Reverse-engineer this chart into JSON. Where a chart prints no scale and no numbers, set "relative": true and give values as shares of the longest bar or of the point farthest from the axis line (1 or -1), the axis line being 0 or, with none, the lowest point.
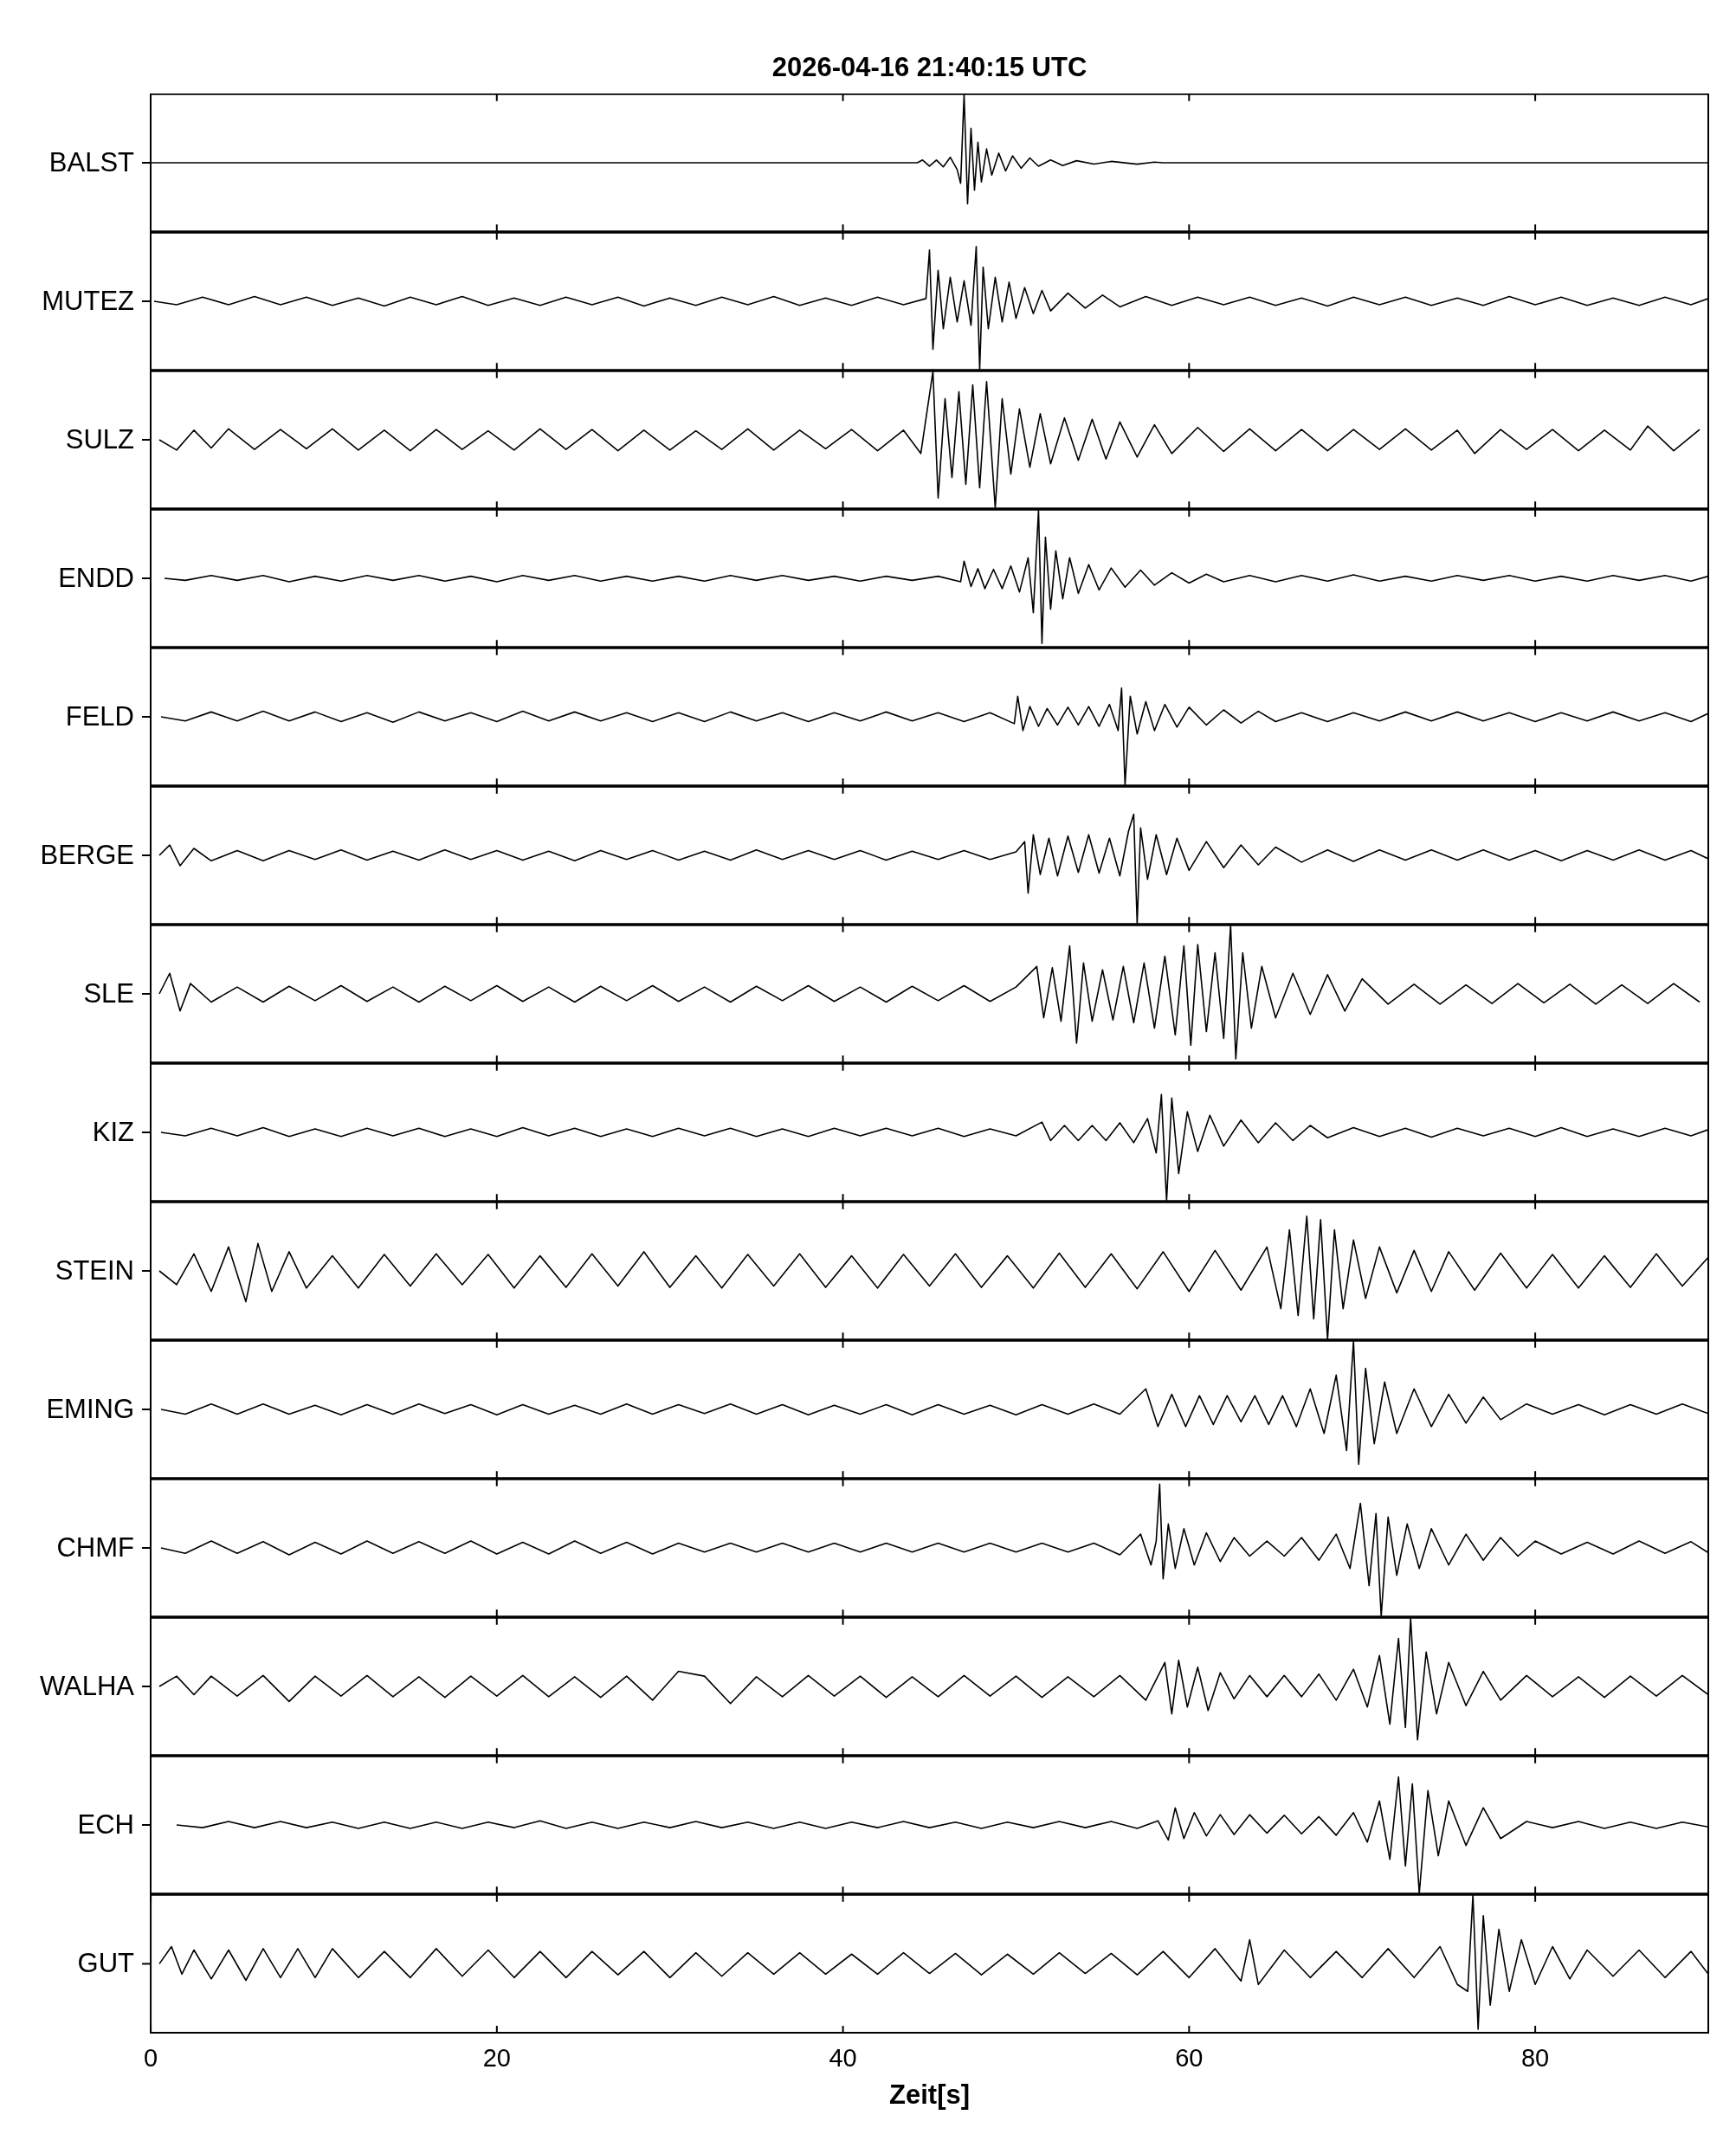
{
  "chart_data": [
    {
      "type": "line",
      "title": "2026-04-16  21:40:15 UTC",
      "ylabel": "BALST",
      "relative": true,
      "xlim": [
        0,
        90
      ],
      "xticks": [
        0,
        20,
        40,
        60,
        80
      ],
      "tick_labels": false,
      "color": "#000000",
      "x": [
        0,
        44.3,
        44.6,
        45,
        45.4,
        45.8,
        46.2,
        46.6,
        46.8,
        47,
        47.2,
        47.4,
        47.6,
        47.8,
        48,
        48.3,
        48.6,
        49,
        49.4,
        49.8,
        50.3,
        50.8,
        51.3,
        52,
        52.7,
        53.5,
        54.5,
        55.5,
        57,
        58,
        58.5,
        90
      ],
      "values": [
        0.5,
        0.5,
        0.52,
        0.475,
        0.52,
        0.47,
        0.54,
        0.45,
        0.35,
        1,
        0.2,
        0.75,
        0.3,
        0.65,
        0.36,
        0.6,
        0.41,
        0.57,
        0.44,
        0.55,
        0.46,
        0.535,
        0.475,
        0.52,
        0.48,
        0.515,
        0.49,
        0.51,
        0.49,
        0.505,
        0.5,
        0.5
      ]
    },
    {
      "type": "line",
      "ylabel": "MUTEZ",
      "relative": true,
      "xlim": [
        0,
        90
      ],
      "xticks": [
        0,
        20,
        40,
        60,
        80
      ],
      "tick_labels": false,
      "color": "#000000",
      "x": [
        0.2,
        1.5,
        3,
        4.5,
        6,
        7.5,
        9,
        10.5,
        12,
        13.5,
        15,
        16.5,
        18,
        19.5,
        21,
        22.5,
        24,
        25.5,
        27,
        28.5,
        30,
        31.5,
        33,
        34.5,
        36,
        37.5,
        39,
        40.5,
        42,
        43.5,
        44.8,
        45,
        45.2,
        45.5,
        45.8,
        46.2,
        46.6,
        47,
        47.4,
        47.7,
        47.9,
        48.1,
        48.4,
        48.8,
        49.2,
        49.6,
        50,
        50.5,
        51,
        51.5,
        52,
        53,
        54,
        55,
        56,
        57.5,
        59,
        60.5,
        62,
        63.5,
        65,
        66.5,
        68,
        69.5,
        71,
        72.5,
        74,
        75.5,
        77,
        78.5,
        80,
        81.5,
        83,
        84.5,
        86,
        87.5,
        89,
        90
      ],
      "values": [
        0.556,
        0.528,
        0.589,
        0.528,
        0.594,
        0.528,
        0.589,
        0.522,
        0.583,
        0.517,
        0.589,
        0.528,
        0.594,
        0.522,
        0.583,
        0.522,
        0.589,
        0.528,
        0.589,
        0.517,
        0.583,
        0.522,
        0.589,
        0.528,
        0.594,
        0.522,
        0.583,
        0.522,
        0.589,
        0.528,
        0.578,
        0.972,
        0.167,
        0.806,
        0.333,
        0.75,
        0.389,
        0.722,
        0.361,
        1,
        0,
        0.833,
        0.333,
        0.75,
        0.389,
        0.711,
        0.417,
        0.667,
        0.456,
        0.644,
        0.478,
        0.622,
        0.5,
        0.606,
        0.511,
        0.594,
        0.522,
        0.589,
        0.528,
        0.589,
        0.522,
        0.583,
        0.517,
        0.589,
        0.528,
        0.589,
        0.522,
        0.583,
        0.522,
        0.594,
        0.528,
        0.589,
        0.522,
        0.583,
        0.522,
        0.589,
        0.528,
        0.578
      ]
    },
    {
      "type": "line",
      "ylabel": "SULZ",
      "relative": true,
      "xlim": [
        0,
        90
      ],
      "xticks": [
        0,
        20,
        40,
        60,
        80
      ],
      "tick_labels": false,
      "color": "#000000",
      "x": [
        0.5,
        1.5,
        2.5,
        3.5,
        4.5,
        6,
        7.5,
        9,
        10.5,
        12,
        13.5,
        15,
        16.5,
        18,
        19.5,
        21,
        22.5,
        24,
        25.5,
        27,
        28.5,
        30,
        31.5,
        33,
        34.5,
        36,
        37.5,
        39,
        40.5,
        42,
        43.5,
        44.5,
        45.2,
        45.5,
        45.9,
        46.3,
        46.7,
        47.1,
        47.5,
        47.9,
        48.3,
        48.8,
        49.2,
        49.7,
        50.2,
        50.8,
        51.4,
        52,
        52.8,
        53.6,
        54.4,
        55.2,
        56,
        57,
        58,
        59,
        60.5,
        62,
        63.5,
        65,
        66.5,
        68,
        69.5,
        71,
        72.5,
        74,
        75.5,
        76.5,
        78,
        79.5,
        81,
        82.5,
        84,
        85.5,
        86.5,
        88,
        89.5
      ],
      "values": [
        0.5,
        0.425,
        0.57,
        0.44,
        0.58,
        0.43,
        0.575,
        0.435,
        0.58,
        0.425,
        0.57,
        0.42,
        0.575,
        0.43,
        0.565,
        0.425,
        0.58,
        0.43,
        0.575,
        0.42,
        0.57,
        0.425,
        0.565,
        0.43,
        0.58,
        0.425,
        0.57,
        0.435,
        0.575,
        0.42,
        0.57,
        0.4,
        1,
        0.075,
        0.8,
        0.225,
        0.85,
        0.175,
        0.9,
        0.15,
        0.925,
        0,
        0.8,
        0.25,
        0.725,
        0.3,
        0.69,
        0.325,
        0.66,
        0.35,
        0.65,
        0.36,
        0.63,
        0.375,
        0.61,
        0.4,
        0.59,
        0.415,
        0.58,
        0.42,
        0.575,
        0.42,
        0.575,
        0.43,
        0.58,
        0.425,
        0.57,
        0.4,
        0.575,
        0.43,
        0.575,
        0.42,
        0.57,
        0.425,
        0.6,
        0.42,
        0.575
      ]
    },
    {
      "type": "line",
      "ylabel": "ENDD",
      "relative": true,
      "xlim": [
        0,
        90
      ],
      "xticks": [
        0,
        20,
        40,
        60,
        80
      ],
      "tick_labels": false,
      "color": "#000000",
      "x": [
        0.8,
        2,
        3.5,
        5,
        6.5,
        8,
        9.5,
        11,
        12.5,
        14,
        15.5,
        17,
        18.5,
        20,
        21.5,
        23,
        24.5,
        26,
        27.5,
        29,
        30.5,
        32,
        33.5,
        35,
        36.5,
        38,
        39.5,
        41,
        42.5,
        44,
        45.5,
        46.8,
        47,
        47.4,
        47.8,
        48.2,
        48.7,
        49.2,
        49.7,
        50.2,
        50.7,
        51,
        51.3,
        51.5,
        51.7,
        52,
        52.3,
        52.7,
        53.1,
        53.6,
        54.2,
        54.8,
        55.5,
        56.3,
        57.2,
        58,
        59,
        60,
        61,
        62,
        63.5,
        65,
        66.5,
        68,
        69.5,
        71,
        72.5,
        74,
        75.5,
        77,
        78.5,
        80,
        81.5,
        83,
        84.5,
        86,
        87.5,
        89,
        90
      ],
      "values": [
        0.5,
        0.485,
        0.52,
        0.485,
        0.52,
        0.475,
        0.515,
        0.48,
        0.52,
        0.485,
        0.52,
        0.48,
        0.515,
        0.475,
        0.52,
        0.485,
        0.52,
        0.48,
        0.515,
        0.48,
        0.515,
        0.48,
        0.52,
        0.485,
        0.52,
        0.485,
        0.515,
        0.48,
        0.515,
        0.485,
        0.515,
        0.475,
        0.625,
        0.44,
        0.57,
        0.425,
        0.565,
        0.425,
        0.59,
        0.4,
        0.65,
        0.25,
        1,
        0.025,
        0.8,
        0.275,
        0.7,
        0.35,
        0.65,
        0.39,
        0.6,
        0.415,
        0.575,
        0.435,
        0.56,
        0.45,
        0.54,
        0.465,
        0.53,
        0.475,
        0.52,
        0.475,
        0.52,
        0.48,
        0.525,
        0.48,
        0.515,
        0.48,
        0.52,
        0.485,
        0.52,
        0.48,
        0.515,
        0.48,
        0.52,
        0.485,
        0.52,
        0.48,
        0.515
      ]
    },
    {
      "type": "line",
      "ylabel": "FELD",
      "relative": true,
      "xlim": [
        0,
        90
      ],
      "xticks": [
        0,
        20,
        40,
        60,
        80
      ],
      "tick_labels": false,
      "color": "#000000",
      "x": [
        0.6,
        2,
        3.5,
        5,
        6.5,
        8,
        9.5,
        11,
        12.5,
        14,
        15.5,
        17,
        18.5,
        20,
        21.5,
        23,
        24.5,
        26,
        27.5,
        29,
        30.5,
        32,
        33.5,
        35,
        36.5,
        38,
        39.5,
        41,
        42.5,
        44,
        45.5,
        47,
        48.5,
        49.9,
        50.1,
        50.4,
        50.8,
        51.3,
        51.8,
        52.4,
        53,
        53.6,
        54.2,
        54.8,
        55.4,
        55.9,
        56.1,
        56.3,
        56.6,
        57,
        57.5,
        58,
        58.6,
        59.3,
        60,
        61,
        62,
        63,
        64,
        65,
        66.5,
        68,
        69.5,
        71,
        72.5,
        74,
        75.5,
        77,
        78.5,
        80,
        81.5,
        83,
        84.5,
        86,
        87.5,
        89,
        90
      ],
      "values": [
        0.704,
        0.662,
        0.754,
        0.662,
        0.761,
        0.662,
        0.754,
        0.655,
        0.746,
        0.648,
        0.754,
        0.662,
        0.746,
        0.655,
        0.761,
        0.662,
        0.754,
        0.662,
        0.746,
        0.655,
        0.746,
        0.655,
        0.754,
        0.662,
        0.746,
        0.655,
        0.746,
        0.662,
        0.754,
        0.662,
        0.746,
        0.655,
        0.746,
        0.634,
        0.915,
        0.563,
        0.81,
        0.606,
        0.789,
        0.62,
        0.803,
        0.62,
        0.81,
        0.606,
        0.831,
        0.563,
        1,
        0,
        0.915,
        0.528,
        0.859,
        0.563,
        0.831,
        0.599,
        0.803,
        0.62,
        0.775,
        0.641,
        0.761,
        0.655,
        0.746,
        0.655,
        0.746,
        0.662,
        0.754,
        0.662,
        0.754,
        0.662,
        0.746,
        0.655,
        0.746,
        0.662,
        0.754,
        0.662,
        0.746,
        0.655,
        0.739
      ]
    },
    {
      "type": "line",
      "ylabel": "BERGE",
      "relative": true,
      "xlim": [
        0,
        90
      ],
      "xticks": [
        0,
        20,
        40,
        60,
        80
      ],
      "tick_labels": false,
      "color": "#000000",
      "x": [
        0.5,
        1.1,
        1.7,
        2.5,
        3.5,
        5,
        6.5,
        8,
        9.5,
        11,
        12.5,
        14,
        15.5,
        17,
        18.5,
        20,
        21.5,
        23,
        24.5,
        26,
        27.5,
        29,
        30.5,
        32,
        33.5,
        35,
        36.5,
        38,
        39.5,
        41,
        42.5,
        44,
        45.5,
        47,
        48.5,
        50,
        50.5,
        50.7,
        51,
        51.4,
        51.9,
        52.4,
        53,
        53.6,
        54.2,
        54.8,
        55.4,
        56,
        56.5,
        56.8,
        57,
        57.2,
        57.6,
        58.1,
        58.7,
        59.3,
        60,
        61,
        62,
        63,
        64,
        65,
        66.5,
        68,
        69.5,
        71,
        72.5,
        74,
        75.5,
        77,
        78.5,
        80,
        81.5,
        83,
        84.5,
        86,
        87.5,
        89,
        90
      ],
      "values": [
        0.625,
        0.719,
        0.531,
        0.688,
        0.575,
        0.669,
        0.575,
        0.669,
        0.588,
        0.675,
        0.581,
        0.663,
        0.581,
        0.675,
        0.588,
        0.669,
        0.581,
        0.663,
        0.575,
        0.669,
        0.588,
        0.669,
        0.581,
        0.663,
        0.581,
        0.675,
        0.588,
        0.669,
        0.588,
        0.669,
        0.581,
        0.663,
        0.588,
        0.669,
        0.588,
        0.656,
        0.75,
        0.281,
        0.813,
        0.45,
        0.781,
        0.438,
        0.8,
        0.469,
        0.813,
        0.463,
        0.781,
        0.438,
        0.844,
        1,
        0,
        0.875,
        0.406,
        0.813,
        0.45,
        0.781,
        0.488,
        0.75,
        0.513,
        0.719,
        0.538,
        0.7,
        0.563,
        0.675,
        0.569,
        0.675,
        0.581,
        0.675,
        0.581,
        0.675,
        0.581,
        0.669,
        0.575,
        0.669,
        0.581,
        0.675,
        0.581,
        0.669,
        0.594
      ]
    },
    {
      "type": "line",
      "ylabel": "SLE",
      "relative": true,
      "xlim": [
        0,
        90
      ],
      "xticks": [
        0,
        20,
        40,
        60,
        80
      ],
      "tick_labels": false,
      "color": "#000000",
      "x": [
        0.5,
        1.1,
        1.7,
        2.3,
        3.5,
        5,
        6.5,
        8,
        9.5,
        11,
        12.5,
        14,
        15.5,
        17,
        18.5,
        20,
        21.5,
        23,
        24.5,
        26,
        27.5,
        29,
        30.5,
        32,
        33.5,
        35,
        36.5,
        38,
        39.5,
        41,
        42.5,
        44,
        45.5,
        47,
        48.5,
        50,
        51.2,
        51.6,
        52.1,
        52.6,
        53.1,
        53.5,
        53.9,
        54.4,
        55,
        55.6,
        56.2,
        56.8,
        57.4,
        58,
        58.6,
        59.2,
        59.7,
        60.1,
        60.5,
        61,
        61.5,
        62,
        62.4,
        62.7,
        63.1,
        63.6,
        64.2,
        65,
        66,
        67,
        68,
        69,
        70,
        71.5,
        73,
        74.5,
        76,
        77.5,
        79,
        80.5,
        82,
        83.5,
        85,
        86.5,
        88,
        89.5
      ],
      "values": [
        0.5,
        0.65,
        0.375,
        0.575,
        0.44,
        0.55,
        0.44,
        0.555,
        0.45,
        0.56,
        0.445,
        0.55,
        0.44,
        0.555,
        0.45,
        0.56,
        0.445,
        0.55,
        0.44,
        0.555,
        0.45,
        0.56,
        0.445,
        0.55,
        0.44,
        0.555,
        0.45,
        0.56,
        0.445,
        0.55,
        0.44,
        0.555,
        0.45,
        0.56,
        0.445,
        0.55,
        0.7,
        0.325,
        0.69,
        0.3,
        0.85,
        0.14,
        0.725,
        0.3,
        0.675,
        0.31,
        0.7,
        0.29,
        0.725,
        0.25,
        0.775,
        0.2,
        0.85,
        0.125,
        0.86,
        0.225,
        0.8,
        0.175,
        1,
        0.025,
        0.8,
        0.25,
        0.7,
        0.325,
        0.65,
        0.35,
        0.64,
        0.375,
        0.61,
        0.425,
        0.57,
        0.425,
        0.565,
        0.43,
        0.575,
        0.435,
        0.57,
        0.425,
        0.565,
        0.43,
        0.575,
        0.44
      ]
    },
    {
      "type": "line",
      "ylabel": "KIZ",
      "relative": true,
      "xlim": [
        0,
        90
      ],
      "xticks": [
        0,
        20,
        40,
        60,
        80
      ],
      "tick_labels": false,
      "color": "#000000",
      "x": [
        0.6,
        2,
        3.5,
        5,
        6.5,
        8,
        9.5,
        11,
        12.5,
        14,
        15.5,
        17,
        18.5,
        20,
        21.5,
        23,
        24.5,
        26,
        27.5,
        29,
        30.5,
        32,
        33.5,
        35,
        36.5,
        38,
        39.5,
        41,
        42.5,
        44,
        45.5,
        47,
        48.5,
        50,
        51.5,
        52,
        52.8,
        53.6,
        54.4,
        55.2,
        56,
        56.8,
        57.6,
        58.1,
        58.4,
        58.7,
        59,
        59.4,
        59.9,
        60.5,
        61.2,
        62,
        63,
        64,
        65,
        66,
        67,
        68,
        69.5,
        71,
        72.5,
        74,
        75.5,
        77,
        78.5,
        80,
        81.5,
        83,
        84.5,
        86,
        87.5,
        89,
        90
      ],
      "values": [
        0.645,
        0.613,
        0.684,
        0.613,
        0.69,
        0.606,
        0.677,
        0.606,
        0.684,
        0.613,
        0.684,
        0.606,
        0.677,
        0.606,
        0.69,
        0.613,
        0.684,
        0.606,
        0.677,
        0.606,
        0.684,
        0.613,
        0.684,
        0.606,
        0.677,
        0.606,
        0.684,
        0.613,
        0.684,
        0.613,
        0.684,
        0.606,
        0.677,
        0.613,
        0.742,
        0.568,
        0.71,
        0.568,
        0.71,
        0.568,
        0.735,
        0.548,
        0.774,
        0.452,
        1,
        0,
        0.968,
        0.258,
        0.839,
        0.465,
        0.806,
        0.516,
        0.761,
        0.548,
        0.735,
        0.568,
        0.71,
        0.594,
        0.69,
        0.606,
        0.684,
        0.6,
        0.684,
        0.613,
        0.684,
        0.606,
        0.69,
        0.606,
        0.677,
        0.606,
        0.684,
        0.613,
        0.671
      ]
    },
    {
      "type": "line",
      "ylabel": "STEIN",
      "relative": true,
      "xlim": [
        0,
        90
      ],
      "xticks": [
        0,
        20,
        40,
        60,
        80
      ],
      "tick_labels": false,
      "color": "#000000",
      "x": [
        0.5,
        1.5,
        2.5,
        3.5,
        4.5,
        5.5,
        6.2,
        7,
        8,
        9,
        10.5,
        12,
        13.5,
        15,
        16.5,
        18,
        19.5,
        21,
        22.5,
        24,
        25.5,
        27,
        28.5,
        30,
        31.5,
        33,
        34.5,
        36,
        37.5,
        39,
        40.5,
        42,
        43.5,
        45,
        46.5,
        48,
        49.5,
        51,
        52.5,
        54,
        55.5,
        57,
        58.5,
        60,
        61.5,
        63,
        64.5,
        65.3,
        65.8,
        66.3,
        66.8,
        67.2,
        67.6,
        68,
        68.4,
        68.9,
        69.5,
        70.2,
        71,
        72,
        73,
        74,
        75,
        76.5,
        78,
        79.5,
        81,
        82.5,
        84,
        85.5,
        87,
        88.5,
        90
      ],
      "values": [
        0.556,
        0.444,
        0.694,
        0.389,
        0.75,
        0.306,
        0.778,
        0.389,
        0.711,
        0.417,
        0.678,
        0.417,
        0.689,
        0.433,
        0.694,
        0.444,
        0.689,
        0.417,
        0.678,
        0.422,
        0.694,
        0.433,
        0.711,
        0.422,
        0.678,
        0.417,
        0.689,
        0.433,
        0.694,
        0.422,
        0.678,
        0.417,
        0.689,
        0.433,
        0.694,
        0.422,
        0.678,
        0.417,
        0.7,
        0.422,
        0.694,
        0.411,
        0.711,
        0.389,
        0.722,
        0.4,
        0.75,
        0.25,
        0.889,
        0.194,
        1,
        0.167,
        0.972,
        0,
        0.889,
        0.25,
        0.806,
        0.333,
        0.75,
        0.378,
        0.722,
        0.389,
        0.711,
        0.4,
        0.7,
        0.417,
        0.689,
        0.417,
        0.678,
        0.422,
        0.694,
        0.433,
        0.667
      ]
    },
    {
      "type": "line",
      "ylabel": "EMING",
      "relative": true,
      "xlim": [
        0,
        90
      ],
      "xticks": [
        0,
        20,
        40,
        60,
        80
      ],
      "tick_labels": false,
      "color": "#000000",
      "x": [
        0.6,
        2,
        3.5,
        5,
        6.5,
        8,
        9.5,
        11,
        12.5,
        14,
        15.5,
        17,
        18.5,
        20,
        21.5,
        23,
        24.5,
        26,
        27.5,
        29,
        30.5,
        32,
        33.5,
        35,
        36.5,
        38,
        39.5,
        41,
        42.5,
        44,
        45.5,
        47,
        48.5,
        50,
        51.5,
        53,
        54.5,
        56,
        57.5,
        58.2,
        59,
        59.8,
        60.6,
        61.4,
        62.2,
        63,
        63.8,
        64.6,
        65.4,
        66.2,
        67,
        67.8,
        68.5,
        69.1,
        69.5,
        69.8,
        70.2,
        70.7,
        71.3,
        72,
        73,
        74,
        75,
        76,
        77,
        78,
        79.5,
        81,
        82.5,
        84,
        85.5,
        87,
        88.5,
        90
      ],
      "values": [
        0.5,
        0.465,
        0.54,
        0.465,
        0.54,
        0.465,
        0.53,
        0.46,
        0.535,
        0.465,
        0.54,
        0.47,
        0.535,
        0.46,
        0.535,
        0.465,
        0.53,
        0.465,
        0.54,
        0.465,
        0.535,
        0.47,
        0.54,
        0.465,
        0.535,
        0.46,
        0.53,
        0.465,
        0.535,
        0.46,
        0.535,
        0.465,
        0.53,
        0.46,
        0.535,
        0.465,
        0.54,
        0.465,
        0.65,
        0.375,
        0.61,
        0.375,
        0.6,
        0.39,
        0.6,
        0.41,
        0.6,
        0.39,
        0.6,
        0.375,
        0.65,
        0.325,
        0.75,
        0.2,
        1,
        0.1,
        0.8,
        0.25,
        0.7,
        0.325,
        0.65,
        0.375,
        0.61,
        0.4,
        0.59,
        0.425,
        0.54,
        0.465,
        0.535,
        0.46,
        0.535,
        0.465,
        0.54,
        0.47
      ]
    },
    {
      "type": "line",
      "ylabel": "CHMF",
      "relative": true,
      "xlim": [
        0,
        90
      ],
      "xticks": [
        0,
        20,
        40,
        60,
        80
      ],
      "tick_labels": false,
      "color": "#000000",
      "x": [
        0.6,
        2,
        3.5,
        5,
        6.5,
        8,
        9.5,
        11,
        12.5,
        14,
        15.5,
        17,
        18.5,
        20,
        21.5,
        23,
        24.5,
        26,
        27.5,
        29,
        30.5,
        32,
        33.5,
        35,
        36.5,
        38,
        39.5,
        41,
        42.5,
        44,
        45.5,
        47,
        48.5,
        50,
        51.5,
        53,
        54.5,
        56,
        57.2,
        57.8,
        58.1,
        58.3,
        58.5,
        58.8,
        59.2,
        59.7,
        60.3,
        61,
        61.8,
        62.6,
        63.5,
        64.5,
        65.5,
        66.5,
        67.5,
        68.5,
        69.3,
        69.9,
        70.4,
        70.8,
        71.1,
        71.5,
        72,
        72.6,
        73.3,
        74,
        75,
        76,
        77,
        78,
        79,
        80,
        81.5,
        83,
        84.5,
        86,
        87.5,
        89,
        90
      ],
      "values": [
        0.518,
        0.477,
        0.57,
        0.477,
        0.565,
        0.466,
        0.56,
        0.472,
        0.57,
        0.477,
        0.565,
        0.477,
        0.57,
        0.472,
        0.56,
        0.472,
        0.57,
        0.477,
        0.56,
        0.472,
        0.554,
        0.487,
        0.554,
        0.487,
        0.554,
        0.487,
        0.554,
        0.487,
        0.554,
        0.487,
        0.554,
        0.487,
        0.554,
        0.487,
        0.554,
        0.487,
        0.554,
        0.466,
        0.622,
        0.389,
        0.57,
        1,
        0.285,
        0.699,
        0.363,
        0.663,
        0.389,
        0.632,
        0.415,
        0.596,
        0.456,
        0.57,
        0.456,
        0.596,
        0.425,
        0.622,
        0.363,
        0.855,
        0.233,
        0.777,
        0,
        0.751,
        0.311,
        0.699,
        0.363,
        0.663,
        0.389,
        0.622,
        0.425,
        0.596,
        0.456,
        0.57,
        0.472,
        0.56,
        0.472,
        0.57,
        0.477,
        0.565,
        0.482
      ]
    },
    {
      "type": "line",
      "ylabel": "WALHA",
      "relative": true,
      "xlim": [
        0,
        90
      ],
      "xticks": [
        0,
        20,
        40,
        60,
        80
      ],
      "tick_labels": false,
      "color": "#000000",
      "x": [
        0.5,
        1.5,
        2.5,
        3.5,
        5,
        6.5,
        8,
        9.5,
        11,
        12.5,
        14,
        15.5,
        17,
        18.5,
        20,
        21.5,
        23,
        24.5,
        26,
        27.5,
        29,
        30.5,
        32,
        33.5,
        35,
        36.5,
        38,
        39.5,
        41,
        42.5,
        44,
        45.5,
        47,
        48.5,
        50,
        51.5,
        53,
        54.5,
        56,
        57.5,
        58.6,
        59,
        59.4,
        59.9,
        60.5,
        61.1,
        61.8,
        62.6,
        63.5,
        64.5,
        65.5,
        66.5,
        67.5,
        68.5,
        69.5,
        70.3,
        71,
        71.6,
        72.1,
        72.5,
        72.8,
        73.2,
        73.7,
        74.3,
        75,
        76,
        77,
        78,
        79.5,
        81,
        82.5,
        84,
        85.5,
        87,
        88.5,
        90
      ],
      "values": [
        0.5,
        0.575,
        0.44,
        0.575,
        0.43,
        0.58,
        0.39,
        0.575,
        0.43,
        0.58,
        0.425,
        0.57,
        0.42,
        0.575,
        0.43,
        0.58,
        0.425,
        0.57,
        0.42,
        0.575,
        0.4,
        0.61,
        0.575,
        0.375,
        0.57,
        0.425,
        0.58,
        0.43,
        0.575,
        0.42,
        0.57,
        0.425,
        0.58,
        0.43,
        0.575,
        0.42,
        0.57,
        0.425,
        0.58,
        0.4,
        0.675,
        0.3,
        0.69,
        0.35,
        0.64,
        0.325,
        0.6,
        0.41,
        0.58,
        0.425,
        0.58,
        0.425,
        0.59,
        0.4,
        0.625,
        0.35,
        0.725,
        0.225,
        0.85,
        0.2,
        1,
        0.11,
        0.75,
        0.3,
        0.675,
        0.36,
        0.61,
        0.4,
        0.58,
        0.425,
        0.57,
        0.42,
        0.575,
        0.43,
        0.58,
        0.44
      ]
    },
    {
      "type": "line",
      "ylabel": "ECH",
      "relative": true,
      "xlim": [
        0,
        90
      ],
      "xticks": [
        0,
        20,
        40,
        60,
        80
      ],
      "tick_labels": false,
      "color": "#000000",
      "x": [
        1.5,
        3,
        4.5,
        6,
        7.5,
        9,
        10.5,
        12,
        13.5,
        15,
        16.5,
        18,
        19.5,
        21,
        22.5,
        24,
        25.5,
        27,
        28.5,
        30,
        31.5,
        33,
        34.5,
        36,
        37.5,
        39,
        40.5,
        42,
        43.5,
        45,
        46.5,
        48,
        49.5,
        51,
        52.5,
        54,
        55.5,
        57,
        58.2,
        58.8,
        59.2,
        59.7,
        60.3,
        61,
        61.8,
        62.6,
        63.5,
        64.5,
        65.5,
        66.5,
        67.5,
        68.5,
        69.5,
        70.3,
        71,
        71.6,
        72.1,
        72.5,
        72.9,
        73.3,
        73.8,
        74.4,
        75,
        76,
        77,
        78,
        79.5,
        81,
        82.5,
        84,
        85.5,
        87,
        88.5,
        90
      ],
      "values": [
        0.588,
        0.565,
        0.618,
        0.565,
        0.618,
        0.565,
        0.612,
        0.559,
        0.612,
        0.559,
        0.612,
        0.559,
        0.612,
        0.565,
        0.624,
        0.559,
        0.612,
        0.559,
        0.612,
        0.565,
        0.618,
        0.565,
        0.612,
        0.559,
        0.612,
        0.559,
        0.612,
        0.565,
        0.618,
        0.565,
        0.612,
        0.559,
        0.612,
        0.565,
        0.618,
        0.565,
        0.618,
        0.559,
        0.624,
        0.459,
        0.735,
        0.471,
        0.694,
        0.494,
        0.676,
        0.506,
        0.676,
        0.518,
        0.671,
        0.512,
        0.659,
        0.5,
        0.694,
        0.441,
        0.794,
        0.294,
        1,
        0.235,
        0.941,
        0,
        0.882,
        0.324,
        0.794,
        0.412,
        0.735,
        0.471,
        0.618,
        0.565,
        0.618,
        0.559,
        0.612,
        0.559,
        0.612,
        0.571
      ]
    },
    {
      "type": "line",
      "ylabel": "GUT",
      "xlabel": "Zeit[s]",
      "relative": true,
      "xlim": [
        0,
        90
      ],
      "xticks": [
        0,
        20,
        40,
        60,
        80
      ],
      "tick_labels": "x",
      "color": "#000000",
      "x": [
        0.5,
        1.2,
        1.8,
        2.5,
        3.5,
        4.5,
        5.5,
        6.5,
        7.5,
        8.5,
        9.5,
        10.5,
        12,
        13.5,
        15,
        16.5,
        18,
        19.5,
        21,
        22.5,
        24,
        25.5,
        27,
        28.5,
        30,
        31.5,
        33,
        34.5,
        36,
        37.5,
        39,
        40.5,
        42,
        43.5,
        45,
        46.5,
        48,
        49.5,
        51,
        52.5,
        54,
        55.5,
        57,
        58.5,
        60,
        61.5,
        63,
        63.5,
        64,
        65.5,
        67,
        68.5,
        70,
        71.5,
        73,
        74.5,
        75.5,
        76.1,
        76.4,
        76.7,
        77,
        77.4,
        77.9,
        78.5,
        79.2,
        80,
        81,
        82,
        83,
        84.5,
        86,
        87.5,
        89,
        90
      ],
      "values": [
        0.5,
        0.625,
        0.425,
        0.6,
        0.39,
        0.6,
        0.38,
        0.61,
        0.4,
        0.61,
        0.4,
        0.61,
        0.4,
        0.59,
        0.4,
        0.61,
        0.41,
        0.6,
        0.4,
        0.59,
        0.4,
        0.59,
        0.42,
        0.59,
        0.4,
        0.58,
        0.41,
        0.58,
        0.425,
        0.58,
        0.425,
        0.57,
        0.425,
        0.58,
        0.43,
        0.575,
        0.42,
        0.57,
        0.425,
        0.58,
        0.43,
        0.575,
        0.42,
        0.59,
        0.4,
        0.61,
        0.375,
        0.675,
        0.35,
        0.6,
        0.4,
        0.59,
        0.4,
        0.61,
        0.4,
        0.625,
        0.35,
        0.3,
        1,
        0.025,
        0.85,
        0.2,
        0.75,
        0.3,
        0.675,
        0.35,
        0.625,
        0.39,
        0.6,
        0.41,
        0.6,
        0.4,
        0.59,
        0.425
      ]
    }
  ]
}
